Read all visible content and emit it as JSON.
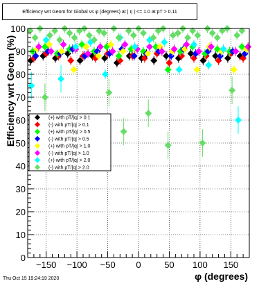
{
  "chart_data": {
    "type": "scatter",
    "title": "Efficiency wrt Geom for Global vs φ (degrees) at | η | <= 1.0 at pT > 0.11",
    "xlabel": "φ (degrees)",
    "ylabel": "Efficiency wrt Geom (%)",
    "xlim": [
      -180,
      180
    ],
    "ylim": [
      0,
      100
    ],
    "x_ticks": [
      -150,
      -100,
      -50,
      0,
      50,
      100,
      150
    ],
    "y_ticks": [
      0,
      10,
      20,
      30,
      40,
      50,
      60,
      70,
      80,
      90,
      100
    ],
    "grid": true,
    "legend_position": "upper-left",
    "series": [
      {
        "name": "(+) with pT/|q| > 0.1",
        "color": "#000000",
        "marker": "diamond",
        "x": [
          -175,
          -155,
          -135,
          -115,
          -95,
          -75,
          -55,
          -35,
          -15,
          5,
          25,
          45,
          65,
          85,
          105,
          125,
          145,
          165
        ],
        "y": [
          86,
          88,
          87,
          89,
          86,
          88,
          87,
          85,
          88,
          87,
          86,
          88,
          87,
          89,
          86,
          88,
          87,
          88
        ]
      },
      {
        "name": "(-) with pT/|q| > 0.1",
        "color": "#ff0000",
        "marker": "diamond",
        "x": [
          -170,
          -150,
          -130,
          -110,
          -90,
          -70,
          -50,
          -30,
          -10,
          10,
          30,
          50,
          70,
          90,
          110,
          130,
          150,
          170
        ],
        "y": [
          87,
          89,
          88,
          86,
          88,
          87,
          89,
          86,
          88,
          87,
          89,
          85,
          88,
          87,
          88,
          86,
          89,
          87
        ]
      },
      {
        "name": "(+) with pT/|q| > 0.5",
        "color": "#00ff00",
        "marker": "diamond",
        "x": [
          -172,
          -152,
          -132,
          -112,
          -92,
          -72,
          -52,
          -32,
          -12,
          8,
          28,
          48,
          68,
          88,
          108,
          128,
          148,
          168
        ],
        "y": [
          90,
          92,
          89,
          91,
          93,
          90,
          92,
          88,
          91,
          90,
          92,
          82,
          90,
          92,
          89,
          91,
          90,
          92
        ]
      },
      {
        "name": "(-) with pT/|q| > 0.5",
        "color": "#0000ff",
        "marker": "diamond",
        "x": [
          -167,
          -147,
          -127,
          -107,
          -87,
          -67,
          -47,
          -27,
          -7,
          13,
          33,
          53,
          73,
          93,
          113,
          133,
          153,
          173
        ],
        "y": [
          88,
          90,
          89,
          91,
          88,
          90,
          89,
          91,
          88,
          89,
          90,
          88,
          91,
          89,
          90,
          88,
          90,
          89
        ]
      },
      {
        "name": "(+) with pT/|q| > 1.0",
        "color": "#ffff00",
        "marker": "diamond",
        "x": [
          -165,
          -145,
          -125,
          -105,
          -85,
          -65,
          -45,
          -25,
          -5,
          15,
          35,
          55,
          75,
          95,
          115,
          135,
          155,
          175
        ],
        "y": [
          91,
          93,
          90,
          82,
          92,
          88,
          93,
          90,
          91,
          89,
          92,
          90,
          91,
          82,
          92,
          90,
          82,
          91
        ]
      },
      {
        "name": "(-) with pT/|q| > 1.0",
        "color": "#ff00ff",
        "marker": "diamond",
        "x": [
          -162,
          -142,
          -122,
          -102,
          -82,
          -62,
          -42,
          -22,
          -2,
          18,
          38,
          58,
          78,
          98,
          118,
          138,
          158,
          178
        ],
        "y": [
          92,
          90,
          93,
          91,
          89,
          92,
          90,
          93,
          91,
          92,
          90,
          91,
          93,
          90,
          92,
          91,
          90,
          92
        ]
      },
      {
        "name": "(+) with pT/|q| > 2.0",
        "color": "#00ffff",
        "marker": "diamond",
        "x": [
          -174,
          -150,
          -126,
          -102,
          -78,
          -54,
          -30,
          -6,
          18,
          42,
          66,
          90,
          114,
          138,
          162
        ],
        "y": [
          75,
          95,
          78,
          92,
          94,
          80,
          96,
          92,
          95,
          94,
          82,
          93,
          84,
          91,
          60
        ]
      },
      {
        "name": "(-) with pT/|q| > 2.0",
        "color": "#66dd66",
        "marker": "diamond",
        "x": [
          -176,
          -168,
          -160,
          -152,
          -144,
          -136,
          -128,
          -120,
          -112,
          -104,
          -96,
          -88,
          -80,
          -72,
          -64,
          -56,
          -48,
          -40,
          -32,
          -24,
          -16,
          -8,
          0,
          8,
          16,
          24,
          32,
          40,
          48,
          56,
          64,
          72,
          80,
          88,
          96,
          104,
          112,
          120,
          128,
          136,
          144,
          152,
          160,
          168
        ],
        "y": [
          99,
          96,
          100,
          70,
          97,
          99,
          95,
          100,
          98,
          96,
          99,
          100,
          97,
          95,
          99,
          98,
          72,
          100,
          96,
          55,
          99,
          97,
          100,
          98,
          63,
          96,
          99,
          100,
          49,
          97,
          98,
          100,
          96,
          99,
          97,
          50,
          100,
          98,
          96,
          99,
          100,
          73,
          97,
          99
        ]
      }
    ]
  },
  "footer": {
    "timestamp": "Thu Oct 15 19:24:19 2020"
  }
}
